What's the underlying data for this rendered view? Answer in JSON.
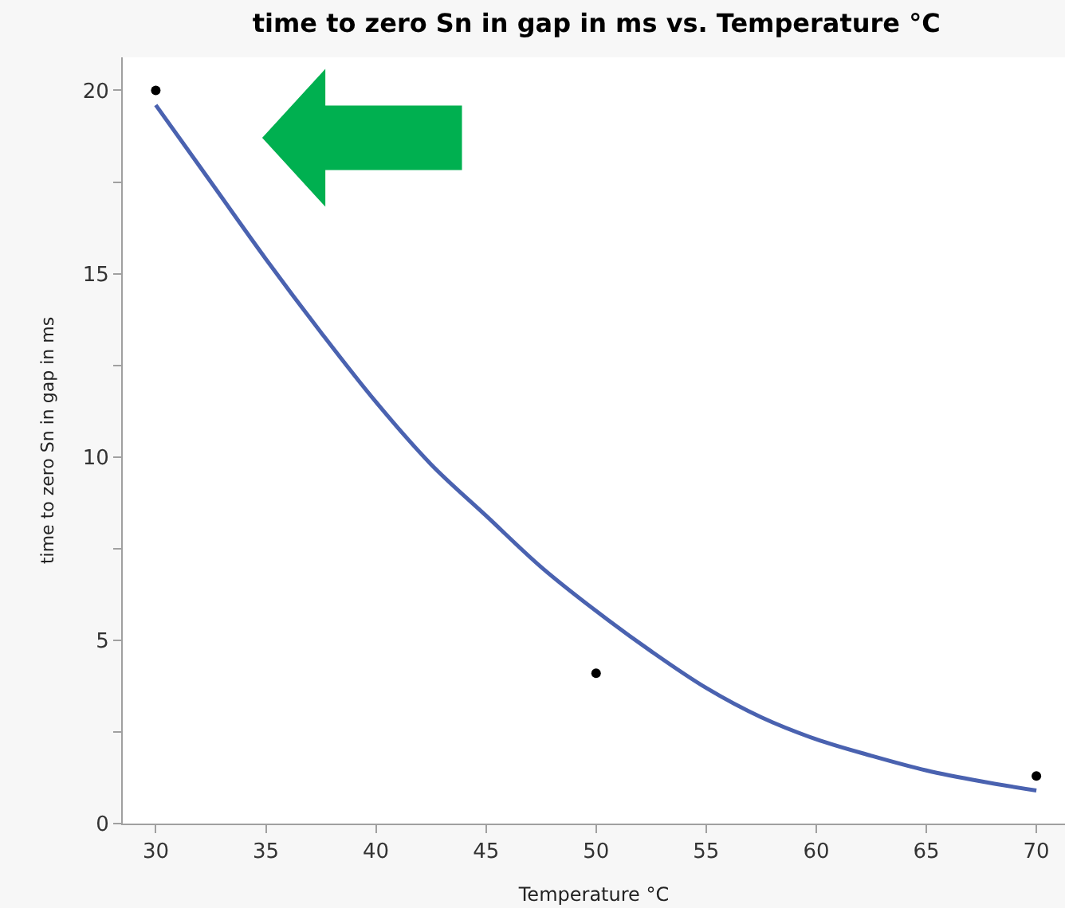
{
  "chart_data": {
    "type": "scatter",
    "title": "time to zero Sn in gap in ms vs. Temperature °C",
    "xlabel": "Temperature °C",
    "ylabel": "time to zero Sn in gap in ms",
    "series": [
      {
        "color": "#000000",
        "marker": "circle",
        "x": [
          30,
          50,
          70
        ],
        "values": [
          20,
          4.1,
          1.3
        ]
      },
      {
        "type": "line",
        "color": "#4a62b0",
        "marker": "none",
        "line_style": "solid",
        "x": [
          30,
          32.5,
          35,
          37.5,
          40,
          42.5,
          45,
          47.5,
          50,
          52.5,
          55,
          57.5,
          60,
          62.5,
          65,
          67.5,
          70
        ],
        "values": [
          19.6,
          17.5,
          15.4,
          13.4,
          11.5,
          9.8,
          8.4,
          7.0,
          5.8,
          4.7,
          3.7,
          2.9,
          2.3,
          1.85,
          1.45,
          1.15,
          0.9
        ]
      }
    ],
    "xlim": [
      28.5,
      71.3
    ],
    "xticks": [
      30,
      35,
      40,
      45,
      50,
      55,
      60,
      65,
      70
    ],
    "ylim": [
      0,
      20.9
    ],
    "yticks": [
      0,
      {
        "value": 2.5,
        "label": null
      },
      5,
      {
        "value": 7.5,
        "label": null
      },
      10,
      {
        "value": 12.5,
        "label": null
      },
      15,
      {
        "value": 17.5,
        "label": null
      },
      20
    ],
    "legend": false
  }
}
